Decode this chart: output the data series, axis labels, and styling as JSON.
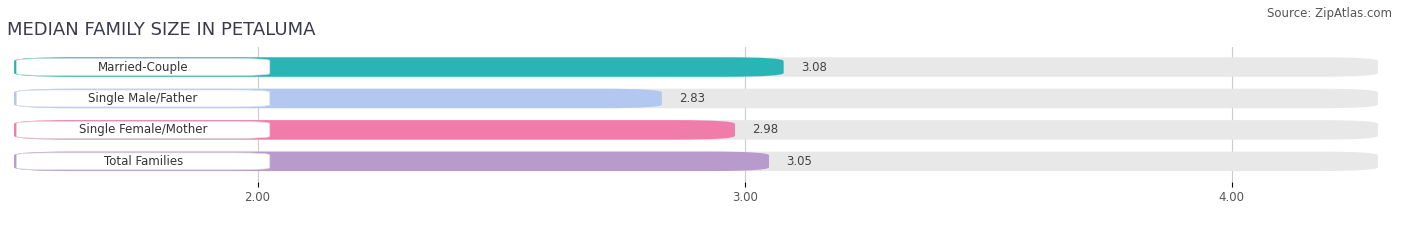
{
  "title": "MEDIAN FAMILY SIZE IN PETALUMA",
  "source": "Source: ZipAtlas.com",
  "categories": [
    "Married-Couple",
    "Single Male/Father",
    "Single Female/Mother",
    "Total Families"
  ],
  "values": [
    3.08,
    2.83,
    2.98,
    3.05
  ],
  "bar_colors": [
    "#29b5b5",
    "#b3c8f0",
    "#f07caa",
    "#b89acc"
  ],
  "background_color": "#ffffff",
  "bar_background_color": "#e8e8e8",
  "xlim": [
    1.5,
    4.3
  ],
  "xmin": 1.5,
  "xticks": [
    2.0,
    3.0,
    4.0
  ],
  "xtick_labels": [
    "2.00",
    "3.00",
    "4.00"
  ],
  "bar_height": 0.62,
  "label_fontsize": 8.5,
  "value_fontsize": 8.5,
  "title_fontsize": 13,
  "source_fontsize": 8.5,
  "title_color": "#3a3a4a",
  "source_color": "#555555",
  "tick_color": "#555555",
  "value_color": "#444444"
}
